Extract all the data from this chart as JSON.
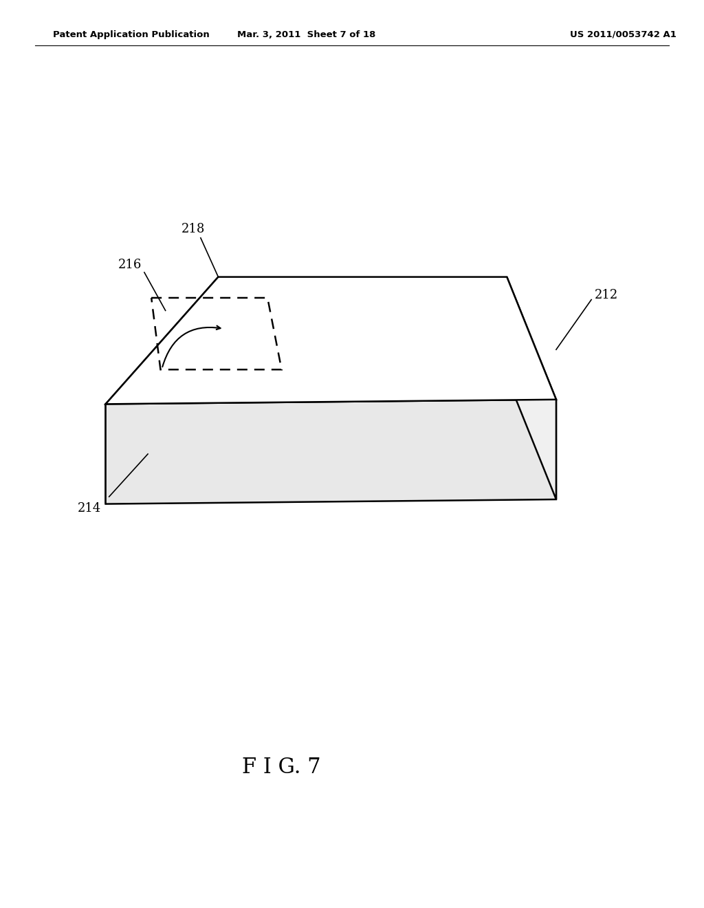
{
  "header_left": "Patent Application Publication",
  "header_center": "Mar. 3, 2011  Sheet 7 of 18",
  "header_right": "US 2011/0053742 A1",
  "figure_label": "F I G. 7",
  "background_color": "#ffffff",
  "line_color": "#000000",
  "label_212": "212",
  "label_214": "214",
  "label_216": "216",
  "label_218": "218"
}
